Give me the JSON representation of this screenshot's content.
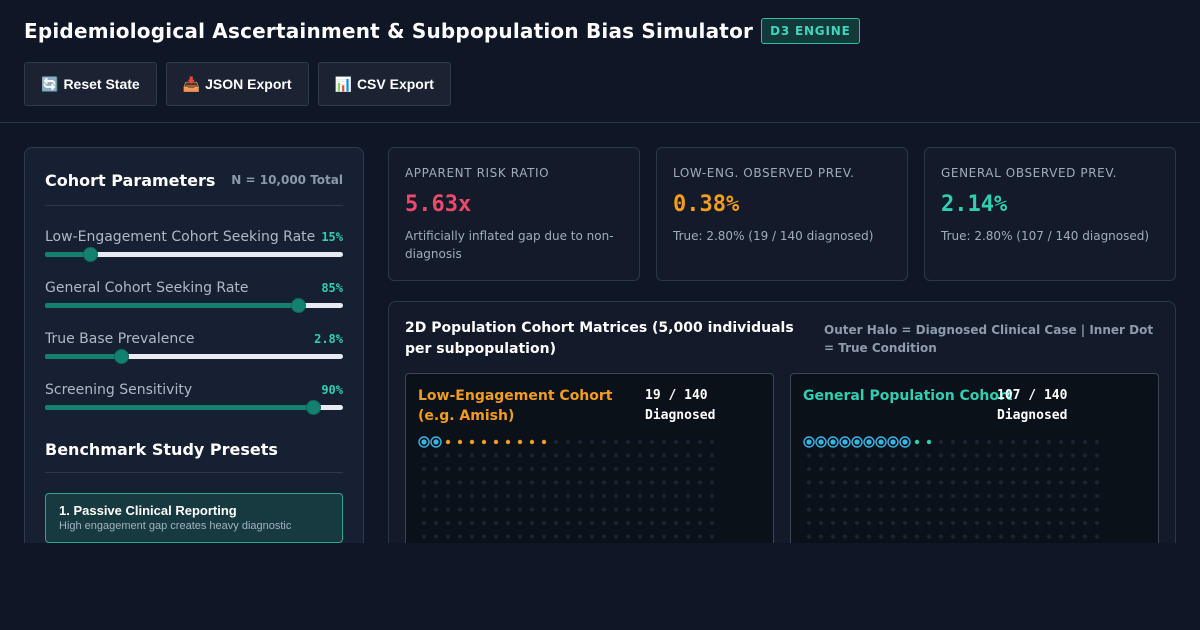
{
  "header": {
    "title": "Epidemiological Ascertainment & Subpopulation Bias Simulator",
    "badge": "D3 ENGINE",
    "buttons": [
      {
        "icon": "🔄",
        "icon_name": "reset-icon",
        "label": "Reset State"
      },
      {
        "icon": "📥",
        "icon_name": "download-icon",
        "label": "JSON Export"
      },
      {
        "icon": "📊",
        "icon_name": "bar-chart-icon",
        "label": "CSV Export"
      }
    ]
  },
  "parameters": {
    "title": "Cohort Parameters",
    "total": "N = 10,000 Total",
    "sliders": [
      {
        "label": "Low-Engagement Cohort Seeking Rate",
        "display": "15%",
        "fraction": 0.15
      },
      {
        "label": "General Cohort Seeking Rate",
        "display": "85%",
        "fraction": 0.85
      },
      {
        "label": "True Base Prevalence",
        "display": "2.8%",
        "fraction": 0.255
      },
      {
        "label": "Screening Sensitivity",
        "display": "90%",
        "fraction": 0.9
      }
    ],
    "presets_title": "Benchmark Study Presets",
    "presets": [
      {
        "title": "1. Passive Clinical Reporting",
        "desc": "High engagement gap creates heavy diagnostic"
      }
    ]
  },
  "stats": [
    {
      "label": "APPARENT RISK RATIO",
      "value": "5.63x",
      "note": "Artificially inflated gap due to non-diagnosis",
      "color": "#f0486b"
    },
    {
      "label": "LOW-ENG. OBSERVED PREV.",
      "value": "0.38%",
      "note": "True: 2.80% (19 / 140 diagnosed)",
      "color": "#f39c1f"
    },
    {
      "label": "GENERAL OBSERVED PREV.",
      "value": "2.14%",
      "note": "True: 2.80% (107 / 140 diagnosed)",
      "color": "#2fcfb2"
    }
  ],
  "matrix": {
    "title": "2D Population Cohort Matrices (5,000 individuals per subpopulation)",
    "legend": "Outer Halo = Diagnosed Clinical Case | Inner Dot = True Condition",
    "cohorts": [
      {
        "name": "Low-Engagement Cohort (e.g. Amish)",
        "count": "19 / 140 Diagnosed",
        "color": "#f39c1f",
        "halo_color": "#39b4e6",
        "diagnosed": 19,
        "cases": 140
      },
      {
        "name": "General Population Cohort",
        "count": "107 / 140 Diagnosed",
        "color": "#2fcfb2",
        "halo_color": "#39b4e6",
        "diagnosed": 107,
        "cases": 140
      }
    ]
  }
}
